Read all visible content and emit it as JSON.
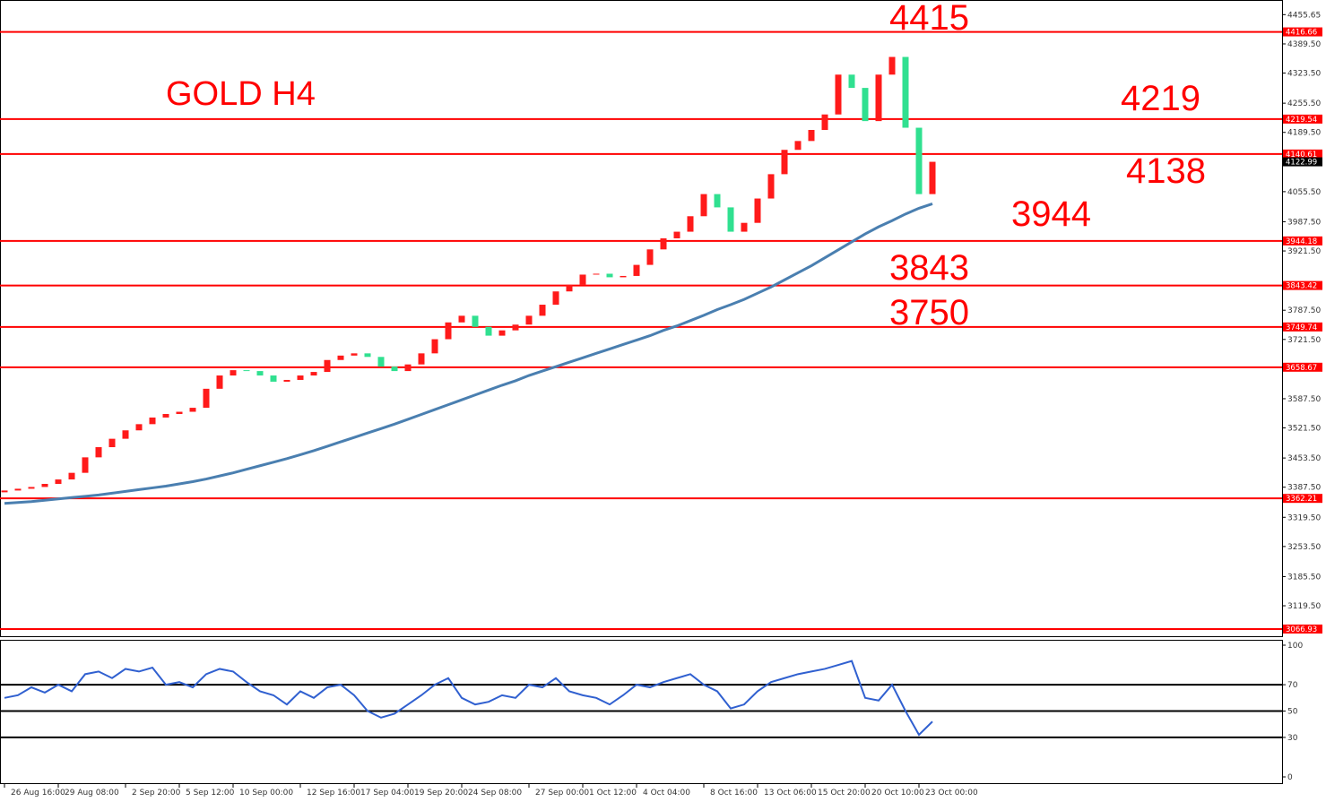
{
  "chart_data": {
    "type": "candlestick",
    "annotations": [
      "4415",
      "GOLD H4",
      "4219",
      "4138",
      "3944",
      "3843",
      "3750"
    ],
    "categories": [
      "26 Aug 16:00",
      null,
      null,
      null,
      "29 Aug 08:00",
      null,
      null,
      null,
      null,
      "2 Sep 20:00",
      null,
      null,
      null,
      "5 Sep 12:00",
      null,
      null,
      null,
      "10 Sep 00:00",
      null,
      null,
      null,
      null,
      "12 Sep 16:00",
      null,
      null,
      null,
      "17 Sep 04:00",
      null,
      null,
      null,
      "19 Sep 20:00",
      null,
      null,
      null,
      "24 Sep 08:00",
      null,
      null,
      null,
      null,
      "27 Sep 00:00",
      null,
      null,
      null,
      "1 Oct 12:00",
      null,
      null,
      null,
      "4 Oct 04:00",
      null,
      null,
      null,
      null,
      "8 Oct 16:00",
      null,
      null,
      null,
      "13 Oct 06:00",
      null,
      null,
      null,
      "15 Oct 20:00",
      null,
      null,
      null,
      "20 Oct 10:00",
      null,
      null,
      null,
      "23 Oct 00:00",
      null
    ],
    "open": [
      3376,
      3380,
      3384,
      3388,
      3395,
      3405,
      3420,
      3455,
      3478,
      3497,
      3516,
      3530,
      3545,
      3553,
      3558,
      3567,
      3610,
      3640,
      3652,
      3650,
      3640,
      3626,
      3630,
      3640,
      3648,
      3675,
      3685,
      3690,
      3682,
      3660,
      3650,
      3665,
      3690,
      3722,
      3760,
      3775,
      3750,
      3730,
      3742,
      3755,
      3775,
      3800,
      3830,
      3845,
      3868,
      3870,
      3862,
      3865,
      3890,
      3925,
      3950,
      3965,
      4000,
      4050,
      4020,
      3965,
      3985,
      4040,
      4095,
      4150,
      4170,
      4195,
      4230,
      4320,
      4290,
      4215,
      4320,
      4360,
      4200,
      4050
    ],
    "close": [
      3380,
      3384,
      3388,
      3395,
      3405,
      3420,
      3455,
      3478,
      3497,
      3516,
      3530,
      3545,
      3553,
      3558,
      3567,
      3610,
      3640,
      3652,
      3650,
      3640,
      3626,
      3630,
      3640,
      3648,
      3675,
      3685,
      3690,
      3682,
      3660,
      3650,
      3665,
      3690,
      3722,
      3760,
      3775,
      3750,
      3730,
      3742,
      3755,
      3775,
      3800,
      3830,
      3845,
      3868,
      3870,
      3862,
      3865,
      3890,
      3925,
      3950,
      3965,
      4000,
      4050,
      4020,
      3965,
      3985,
      4040,
      4095,
      4150,
      4170,
      4195,
      4230,
      4320,
      4290,
      4215,
      4320,
      4360,
      4200,
      4050,
      4123
    ],
    "bull_color": "#ff1a1a",
    "bear_color": "#30e090",
    "ma": {
      "color": "#4a7fb0",
      "values": [
        3351,
        3353,
        3355,
        3358,
        3361,
        3364,
        3367,
        3370,
        3374,
        3378,
        3382,
        3386,
        3390,
        3395,
        3400,
        3406,
        3413,
        3420,
        3428,
        3436,
        3444,
        3452,
        3461,
        3470,
        3480,
        3490,
        3500,
        3510,
        3520,
        3530,
        3541,
        3552,
        3563,
        3574,
        3585,
        3596,
        3607,
        3618,
        3628,
        3640,
        3650,
        3660,
        3670,
        3680,
        3690,
        3700,
        3710,
        3720,
        3730,
        3742,
        3752,
        3764,
        3776,
        3789,
        3800,
        3812,
        3826,
        3840,
        3856,
        3872,
        3888,
        3906,
        3924,
        3942,
        3960,
        3976,
        3990,
        4005,
        4018,
        4028
      ]
    },
    "ylim": [
      3052.7,
      4488.7
    ],
    "yticks": [
      4455.65,
      {
        "value": 4389.5,
        "label": "4389.50"
      },
      {
        "value": 4323.5,
        "label": "4323.50"
      },
      {
        "value": 4255.5,
        "label": "4255.50"
      },
      {
        "value": 4189.5,
        "label": "4189.50"
      },
      {
        "value": 4055.5,
        "label": "4055.50"
      },
      {
        "value": 3987.5,
        "label": "3987.50"
      },
      {
        "value": 3921.5,
        "label": "3921.50"
      },
      {
        "value": 3787.5,
        "label": "3787.50"
      },
      {
        "value": 3721.5,
        "label": "3721.50"
      },
      {
        "value": 3587.5,
        "label": "3587.50"
      },
      {
        "value": 3521.5,
        "label": "3521.50"
      },
      {
        "value": 3453.5,
        "label": "3453.50"
      },
      {
        "value": 3387.5,
        "label": "3387.50"
      },
      {
        "value": 3319.5,
        "label": "3319.50"
      },
      {
        "value": 3253.5,
        "label": "3253.50"
      },
      {
        "value": 3185.5,
        "label": "3185.50"
      },
      {
        "value": 3119.5,
        "label": "3119.50"
      }
    ],
    "levels": [
      4416.66,
      4219.54,
      4140.61,
      3944.18,
      3843.42,
      3749.74,
      3658.67,
      3362.21,
      3066.93
    ],
    "level_color": "#ff0000",
    "current_price": 4122.99,
    "rsi": {
      "color": "#3060d0",
      "ylim": [
        0,
        100
      ],
      "yticks": [
        100,
        70,
        50,
        30,
        0
      ],
      "levels": [
        70,
        50,
        30
      ],
      "values": [
        60,
        62,
        68,
        64,
        70,
        65,
        78,
        80,
        75,
        82,
        80,
        83,
        70,
        72,
        68,
        78,
        82,
        80,
        72,
        65,
        62,
        55,
        65,
        60,
        68,
        70,
        62,
        50,
        45,
        48,
        55,
        62,
        70,
        75,
        60,
        55,
        57,
        62,
        60,
        70,
        68,
        75,
        65,
        62,
        60,
        55,
        62,
        70,
        68,
        72,
        75,
        78,
        70,
        65,
        52,
        55,
        65,
        72,
        75,
        78,
        80,
        82,
        85,
        88,
        60,
        58,
        70,
        50,
        32,
        42
      ]
    }
  }
}
